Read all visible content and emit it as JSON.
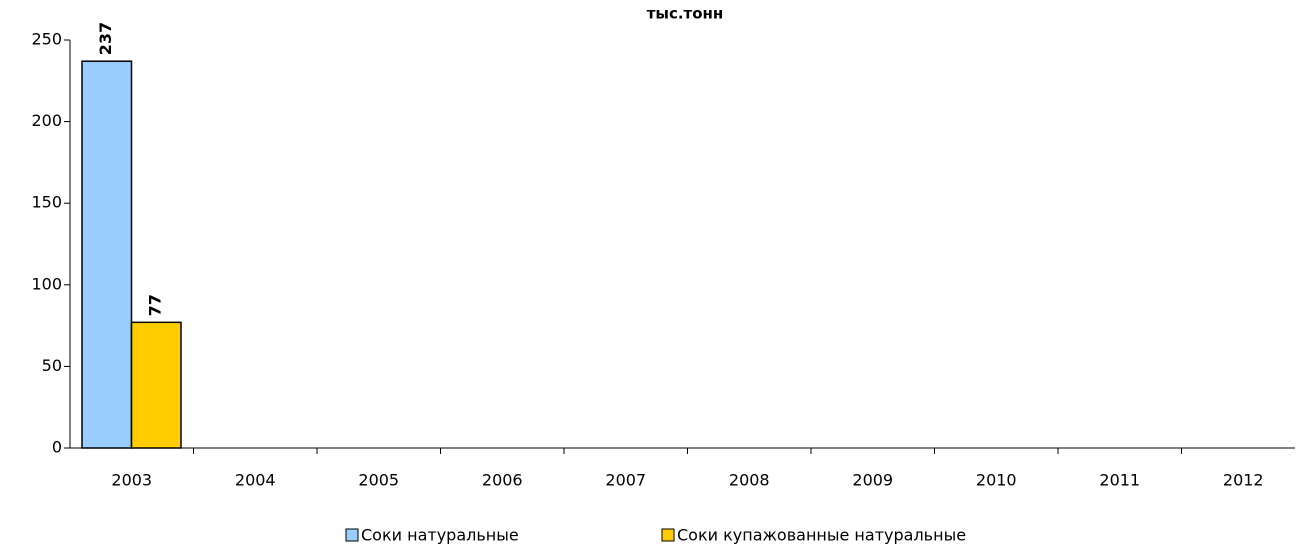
{
  "chart_data": {
    "type": "bar",
    "title": "тыс.тонн",
    "categories": [
      "2003",
      "2004",
      "2005",
      "2006",
      "2007",
      "2008",
      "2009",
      "2010",
      "2011",
      "2012"
    ],
    "series": [
      {
        "name": "Соки натуральные",
        "color": "#99ccff",
        "values": [
          237,
          null,
          null,
          null,
          null,
          null,
          null,
          null,
          null,
          null
        ]
      },
      {
        "name": "Соки купажованные натуральные",
        "color": "#ffcc00",
        "values": [
          77,
          null,
          null,
          null,
          null,
          null,
          null,
          null,
          null,
          null
        ]
      }
    ],
    "ylim": [
      0,
      250
    ],
    "yticks": [
      0,
      50,
      100,
      150,
      200,
      250
    ],
    "legend": "bottom"
  }
}
